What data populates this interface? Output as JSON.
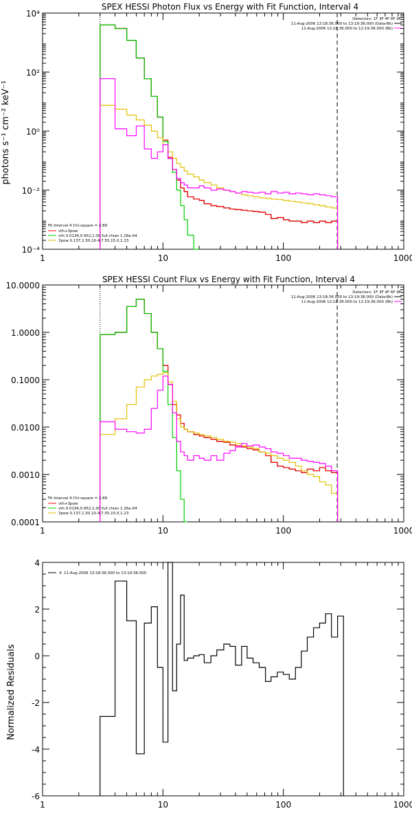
{
  "chart_data": [
    {
      "type": "line",
      "title": "SPEX HESSI Photon Flux vs Energy with Fit Function, Interval 4",
      "ylabel": "photons s⁻¹ cm⁻² keV⁻¹",
      "xlabel": "",
      "x_scale": "log",
      "y_scale": "log",
      "xlim": [
        1,
        1000
      ],
      "ylim": [
        0.0001,
        10000
      ],
      "x_ticks": [
        1,
        10,
        100,
        1000
      ],
      "x_tick_labels": [
        "1",
        "10",
        "100",
        "1000"
      ],
      "y_ticks": [
        0.0001,
        0.01,
        1,
        100,
        10000
      ],
      "y_tick_labels": [
        "10⁻⁴",
        "10⁻²",
        "10⁰",
        "10²",
        "10⁴"
      ],
      "vlines": [
        {
          "x": 3,
          "style": "dotted",
          "color": "#000000"
        },
        {
          "x": 280,
          "style": "dashed",
          "color": "#000000"
        }
      ],
      "legend_topright": [
        "Detectors: 1F 3F 4F 6F 9F",
        "11-Aug-2006 13:18:36.000 to 13:19:36.000 (Data-Bk)",
        "11-Aug-2006 12:18:36.000 to 12:19:36.000 (Bk)"
      ],
      "legend_topright_colors": [
        "",
        "#000000",
        "#ff00ff"
      ],
      "legend_bottomleft": [
        "Fit Interval  4   Chi-square = 2.89",
        "vth+3pow",
        "vth 0.0134,0.952,1.00  full chian 1.26e-04",
        "3pow 0.137,1.50,10.4,7.55,15.0,1.23"
      ],
      "legend_bottomleft_colors": [
        "",
        "#ff0000",
        "#00cc00",
        "#e0c000"
      ],
      "series": [
        {
          "name": "11-Aug-2006 13:18:36.000 to 13:19:36.000 (Data-Bk)",
          "color": "#000000",
          "bins": [
            3,
            4,
            5,
            6,
            7,
            8,
            9,
            10,
            11,
            12,
            13,
            14,
            15,
            16,
            18,
            20,
            22,
            25,
            28,
            32,
            36,
            40,
            45,
            50,
            56,
            63,
            71,
            79,
            89,
            100,
            112,
            126,
            141,
            158,
            178,
            200,
            224,
            251,
            282
          ],
          "values": [
            4000,
            3000,
            1200,
            300,
            60,
            15,
            3,
            0.45,
            0.12,
            0.05,
            0.022,
            0.012,
            0.009,
            0.006,
            0.005,
            0.0045,
            0.0035,
            0.003,
            0.0028,
            0.0025,
            0.0023,
            0.0022,
            0.0021,
            0.002,
            0.0019,
            0.0018,
            0.0015,
            0.0011,
            0.0012,
            0.001,
            0.0009,
            0.0009,
            0.0008,
            0.0009,
            0.0008,
            0.0009,
            0.0008,
            0.0009
          ]
        },
        {
          "name": "vth+3pow",
          "color": "#ff0000",
          "bins": [
            3,
            4,
            5,
            6,
            7,
            8,
            9,
            10,
            11,
            12,
            13,
            14,
            15,
            16,
            18,
            20,
            22,
            25,
            28,
            32,
            36,
            40,
            45,
            50,
            56,
            63,
            71,
            79,
            89,
            100,
            112,
            126,
            141,
            158,
            178,
            200,
            224,
            251,
            282
          ],
          "values": [
            4000,
            3000,
            1200,
            300,
            60,
            15,
            3,
            0.5,
            0.13,
            0.05,
            0.022,
            0.012,
            0.009,
            0.006,
            0.005,
            0.0045,
            0.0035,
            0.003,
            0.0028,
            0.0025,
            0.0023,
            0.0022,
            0.0021,
            0.002,
            0.0019,
            0.0018,
            0.0015,
            0.0011,
            0.0012,
            0.001,
            0.0009,
            0.0009,
            0.0008,
            0.0009,
            0.0008,
            0.0009,
            0.0008,
            0.0009
          ]
        },
        {
          "name": "vth 0.0134,0.952,1.00",
          "color": "#00cc00",
          "bins": [
            3,
            4,
            5,
            6,
            7,
            8,
            9,
            10,
            11,
            12,
            13,
            14,
            15,
            16,
            18,
            20
          ],
          "values": [
            4000,
            3000,
            1200,
            300,
            60,
            15,
            3,
            0.45,
            0.12,
            0.04,
            0.01,
            0.003,
            0.001,
            0.0003,
            0.0001
          ]
        },
        {
          "name": "3pow 0.137,1.50,10.4,7.55,15.0,1.23",
          "color": "#e0c000",
          "bins": [
            3,
            4,
            5,
            6,
            7,
            8,
            9,
            10,
            11,
            12,
            13,
            14,
            15,
            16,
            18,
            20,
            22,
            25,
            28,
            32,
            36,
            40,
            45,
            50,
            56,
            63,
            71,
            79,
            89,
            100,
            112,
            126,
            141,
            158,
            178,
            200,
            224,
            251,
            282
          ],
          "values": [
            7.5,
            5.5,
            3.5,
            2.4,
            1.6,
            1.0,
            0.6,
            0.35,
            0.2,
            0.12,
            0.08,
            0.06,
            0.045,
            0.035,
            0.028,
            0.022,
            0.018,
            0.015,
            0.012,
            0.01,
            0.009,
            0.008,
            0.007,
            0.0065,
            0.006,
            0.0055,
            0.0053,
            0.005,
            0.0048,
            0.0045,
            0.0042,
            0.004,
            0.0037,
            0.0035,
            0.0032,
            0.003,
            0.0027,
            0.0025
          ]
        },
        {
          "name": "11-Aug-2006 12:18:36.000 to 12:19:36.000 (Bk)",
          "color": "#ff00ff",
          "bins": [
            3,
            4,
            5,
            6,
            7,
            8,
            9,
            10,
            11,
            12,
            13,
            14,
            15,
            16,
            18,
            20,
            22,
            25,
            28,
            32,
            36,
            40,
            45,
            50,
            56,
            63,
            71,
            79,
            89,
            100,
            112,
            126,
            141,
            158,
            178,
            200,
            224,
            251,
            282
          ],
          "values": [
            60,
            1.2,
            0.7,
            1.5,
            0.25,
            0.12,
            0.2,
            0.35,
            0.12,
            0.05,
            0.025,
            0.018,
            0.015,
            0.012,
            0.012,
            0.014,
            0.012,
            0.01,
            0.011,
            0.01,
            0.009,
            0.008,
            0.009,
            0.0085,
            0.008,
            0.0085,
            0.0075,
            0.009,
            0.008,
            0.0085,
            0.0075,
            0.008,
            0.0075,
            0.007,
            0.0075,
            0.007,
            0.0065,
            0.006
          ]
        }
      ]
    },
    {
      "type": "line",
      "title": "SPEX HESSI Count Flux vs Energy with Fit Function, Interval 4",
      "ylabel": "",
      "xlabel": "",
      "x_scale": "log",
      "y_scale": "log",
      "xlim": [
        1,
        1000
      ],
      "ylim": [
        0.0001,
        10
      ],
      "x_ticks": [
        1,
        10,
        100,
        1000
      ],
      "x_tick_labels": [
        "1",
        "10",
        "100",
        "1000"
      ],
      "y_ticks": [
        0.0001,
        0.001,
        0.01,
        0.1,
        1,
        10
      ],
      "y_tick_labels": [
        "0.0001",
        "0.0010",
        "0.0100",
        "0.1000",
        "1.0000",
        "10.0000"
      ],
      "vlines": [
        {
          "x": 3,
          "style": "dotted",
          "color": "#000000"
        },
        {
          "x": 280,
          "style": "dashed",
          "color": "#000000"
        }
      ],
      "legend_topright": [
        "Detectors: 1F 3F 4F 6F 9F",
        "11-Aug-2006 13:18:36.000 to 13:19:36.000 (Data-Bk)",
        "11-Aug-2006 12:18:36.000 to 12:19:36.000 (Bk)"
      ],
      "legend_topright_colors": [
        "",
        "#000000",
        "#ff00ff"
      ],
      "legend_bottomleft": [
        "Fit Interval  4   Chi-square = 2.89",
        "vth+3pow",
        "vth 0.0134,0.952,1.00  full chian 1.26e-04",
        "3pow 0.137,1.50,10.4,7.55,15.0,1.23"
      ],
      "legend_bottomleft_colors": [
        "",
        "#ff0000",
        "#00cc00",
        "#e0c000"
      ],
      "series": [
        {
          "name": "11-Aug-2006 13:18:36.000 to 13:19:36.000 (Data-Bk)",
          "color": "#000000",
          "bins": [
            3,
            4,
            5,
            6,
            7,
            8,
            9,
            10,
            11,
            12,
            13,
            14,
            15,
            16,
            18,
            20,
            22,
            25,
            28,
            32,
            36,
            40,
            45,
            50,
            56,
            63,
            71,
            79,
            89,
            100,
            112,
            126,
            141,
            158,
            178,
            200,
            224,
            251,
            282
          ],
          "values": [
            0.9,
            1.0,
            3.5,
            5.0,
            2.5,
            1.0,
            0.45,
            0.2,
            0.08,
            0.03,
            0.018,
            0.012,
            0.009,
            0.008,
            0.007,
            0.0065,
            0.006,
            0.0055,
            0.005,
            0.0048,
            0.0042,
            0.004,
            0.0038,
            0.0035,
            0.0033,
            0.003,
            0.0025,
            0.0018,
            0.0015,
            0.0014,
            0.0013,
            0.0012,
            0.0011,
            0.0013,
            0.0012,
            0.0014,
            0.0012,
            0.0011
          ]
        },
        {
          "name": "vth+3pow",
          "color": "#ff0000",
          "bins": [
            3,
            4,
            5,
            6,
            7,
            8,
            9,
            10,
            11,
            12,
            13,
            14,
            15,
            16,
            18,
            20,
            22,
            25,
            28,
            32,
            36,
            40,
            45,
            50,
            56,
            63,
            71,
            79,
            89,
            100,
            112,
            126,
            141,
            158,
            178,
            200,
            224,
            251,
            282
          ],
          "values": [
            0.9,
            1.0,
            3.5,
            5.0,
            2.5,
            1.0,
            0.45,
            0.2,
            0.08,
            0.03,
            0.018,
            0.012,
            0.009,
            0.008,
            0.007,
            0.0065,
            0.006,
            0.0055,
            0.005,
            0.0048,
            0.0042,
            0.004,
            0.0038,
            0.0035,
            0.0033,
            0.003,
            0.0025,
            0.0018,
            0.0015,
            0.0014,
            0.0013,
            0.0012,
            0.0011,
            0.0013,
            0.0012,
            0.0014,
            0.0012,
            0.0011
          ]
        },
        {
          "name": "vth 0.0134,0.952,1.00",
          "color": "#00cc00",
          "bins": [
            3,
            4,
            5,
            6,
            7,
            8,
            9,
            10,
            11,
            12,
            13,
            14,
            15,
            16
          ],
          "values": [
            0.9,
            1.0,
            3.5,
            5.0,
            2.5,
            1.0,
            0.45,
            0.15,
            0.03,
            0.006,
            0.0012,
            0.0003,
            0.0001
          ]
        },
        {
          "name": "3pow 0.137,1.50,10.4,7.55,15.0,1.23",
          "color": "#e0c000",
          "bins": [
            3,
            4,
            5,
            6,
            7,
            8,
            9,
            10,
            11,
            12,
            13,
            14,
            15,
            16,
            18,
            20,
            22,
            25,
            28,
            32,
            36,
            40,
            45,
            50,
            56,
            63,
            71,
            79,
            89,
            100,
            112,
            126,
            141,
            158,
            178,
            200,
            224,
            251,
            282
          ],
          "values": [
            0.007,
            0.015,
            0.03,
            0.07,
            0.1,
            0.12,
            0.13,
            0.14,
            0.09,
            0.035,
            0.015,
            0.01,
            0.009,
            0.008,
            0.0075,
            0.007,
            0.0065,
            0.006,
            0.0055,
            0.005,
            0.0048,
            0.0045,
            0.004,
            0.0038,
            0.0035,
            0.003,
            0.0028,
            0.0025,
            0.0022,
            0.002,
            0.0018,
            0.0015,
            0.0012,
            0.001,
            0.0009,
            0.0007,
            0.0006,
            0.0004
          ]
        },
        {
          "name": "11-Aug-2006 12:18:36.000 to 12:19:36.000 (Bk)",
          "color": "#ff00ff",
          "bins": [
            3,
            4,
            5,
            6,
            7,
            8,
            9,
            10,
            11,
            12,
            13,
            14,
            15,
            16,
            18,
            20,
            22,
            25,
            28,
            32,
            36,
            40,
            45,
            50,
            56,
            63,
            71,
            79,
            89,
            100,
            112,
            126,
            141,
            158,
            178,
            200,
            224,
            251,
            282
          ],
          "values": [
            0.013,
            0.009,
            0.008,
            0.0075,
            0.009,
            0.025,
            0.06,
            0.12,
            0.08,
            0.02,
            0.005,
            0.003,
            0.0025,
            0.002,
            0.0025,
            0.0022,
            0.002,
            0.0025,
            0.002,
            0.0028,
            0.0032,
            0.0038,
            0.0045,
            0.004,
            0.0042,
            0.0038,
            0.0035,
            0.003,
            0.0028,
            0.0025,
            0.0022,
            0.0022,
            0.002,
            0.0019,
            0.0018,
            0.0017,
            0.0015,
            0.0012
          ]
        }
      ]
    },
    {
      "type": "line",
      "title": "",
      "ylabel": "Normalized Residuals",
      "xlabel": "",
      "x_scale": "log",
      "y_scale": "linear",
      "xlim": [
        1,
        1000
      ],
      "ylim": [
        -6,
        4
      ],
      "x_ticks": [
        1,
        10,
        100,
        1000
      ],
      "x_tick_labels": [
        "1",
        "10",
        "100",
        "1000"
      ],
      "y_ticks": [
        -6,
        -4,
        -2,
        0,
        2,
        4
      ],
      "y_tick_labels": [
        "-6",
        "-4",
        "-2",
        "0",
        "2",
        "4"
      ],
      "legend_topleft": "4. 11-Aug-2006 13:18:36.000 to 13:19:36.000",
      "series": [
        {
          "name": "4. 11-Aug-2006 13:18:36.000 to 13:19:36.000",
          "color": "#000000",
          "bins": [
            3,
            4,
            5,
            6,
            7,
            8,
            9,
            10,
            11,
            12,
            13,
            14,
            15,
            16,
            18,
            20,
            22,
            25,
            28,
            32,
            36,
            40,
            45,
            50,
            56,
            63,
            71,
            79,
            89,
            100,
            112,
            126,
            141,
            158,
            178,
            200,
            224,
            251,
            282
          ],
          "values": [
            -2.6,
            3.2,
            1.5,
            -4.2,
            1.4,
            2.1,
            -0.5,
            -3.7,
            4.0,
            -1.5,
            0.5,
            2.6,
            -0.2,
            -0.1,
            0.0,
            0.05,
            -0.3,
            0.0,
            0.25,
            0.5,
            0.4,
            -0.4,
            0.4,
            -0.1,
            -0.3,
            -0.5,
            -1.1,
            -0.9,
            -0.7,
            -0.8,
            -1.0,
            -0.5,
            0.2,
            0.8,
            1.2,
            1.4,
            1.8,
            0.8,
            1.7
          ]
        }
      ]
    }
  ]
}
